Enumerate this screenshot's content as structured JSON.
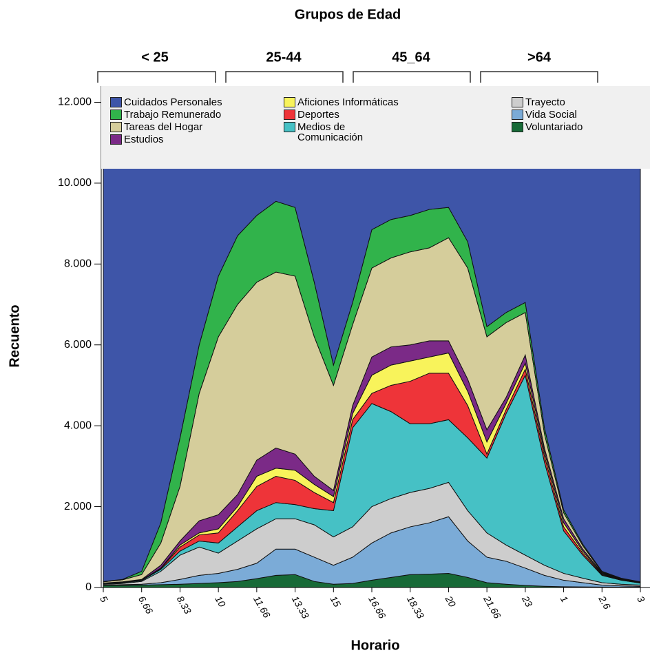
{
  "chart_data": {
    "type": "stacked-area",
    "panel_title": "Grupos de Edad",
    "panel_labels": [
      "< 25",
      "25-44",
      "45_64",
      ">64"
    ],
    "x_label": "Horario",
    "y_label": "Recuento",
    "categories": [
      "5",
      null,
      "6.66",
      null,
      "8.33",
      null,
      "10",
      null,
      "11.66",
      null,
      "13.33",
      null,
      "15",
      null,
      "16.66",
      null,
      "18.33",
      null,
      "20",
      null,
      "21.66",
      null,
      "23",
      null,
      "1",
      null,
      "2.6",
      null,
      "3"
    ],
    "ylim": [
      0,
      12400
    ],
    "yticks": [
      0,
      {
        "value": 2000,
        "label": "2.000"
      },
      {
        "value": 4000,
        "label": "4.000"
      },
      {
        "value": 6000,
        "label": "6.000"
      },
      {
        "value": 8000,
        "label": "8.000"
      },
      {
        "value": 10000,
        "label": "10.000"
      },
      {
        "value": 12000,
        "label": "12.000"
      }
    ],
    "series": [
      {
        "name": "Cuidados Personales",
        "color": "#3e55a8",
        "values": [
          10350,
          10300,
          10100,
          8900,
          6800,
          4500,
          2800,
          1800,
          1300,
          950,
          1100,
          2950,
          5000,
          3450,
          1650,
          1400,
          1300,
          1150,
          1100,
          1950,
          4050,
          3700,
          3450,
          6550,
          8580,
          9430,
          10100,
          10270,
          10360
        ]
      },
      {
        "name": "Trabajo Remunerado",
        "color": "#31b34b",
        "values": [
          10,
          10,
          80,
          500,
          1200,
          1200,
          1500,
          1700,
          1650,
          1750,
          1700,
          1350,
          500,
          550,
          950,
          950,
          900,
          950,
          750,
          650,
          250,
          250,
          250,
          150,
          70,
          40,
          20,
          10,
          5
        ]
      },
      {
        "name": "Tareas del Hogar",
        "color": "#d5cd9b",
        "values": [
          30,
          50,
          120,
          550,
          1350,
          3150,
          4400,
          4700,
          4400,
          4350,
          4400,
          3450,
          2600,
          2000,
          2200,
          2200,
          2300,
          2300,
          2550,
          2750,
          2300,
          1850,
          1050,
          350,
          150,
          80,
          20,
          10,
          10
        ]
      },
      {
        "name": "Estudios",
        "color": "#7b2a87",
        "values": [
          10,
          10,
          15,
          70,
          100,
          300,
          350,
          300,
          400,
          500,
          400,
          200,
          150,
          200,
          450,
          450,
          400,
          400,
          300,
          300,
          300,
          150,
          200,
          100,
          100,
          50,
          20,
          10,
          5
        ]
      },
      {
        "name": "Aficiones Informáticas",
        "color": "#f8f35b",
        "values": [
          0,
          5,
          5,
          10,
          50,
          50,
          100,
          100,
          250,
          200,
          250,
          200,
          150,
          150,
          450,
          500,
          500,
          400,
          500,
          350,
          300,
          150,
          150,
          100,
          100,
          50,
          20,
          10,
          5
        ]
      },
      {
        "name": "Deportes",
        "color": "#ee3439",
        "values": [
          0,
          5,
          10,
          20,
          100,
          150,
          250,
          400,
          600,
          650,
          600,
          400,
          200,
          200,
          250,
          650,
          1050,
          1250,
          1150,
          800,
          100,
          100,
          150,
          150,
          100,
          50,
          20,
          10,
          5
        ]
      },
      {
        "name": "Medios de Comunicación",
        "color": "#46c1c5",
        "values": [
          20,
          20,
          20,
          50,
          100,
          150,
          250,
          350,
          450,
          400,
          350,
          400,
          650,
          2450,
          2550,
          2150,
          1700,
          1600,
          1550,
          1800,
          1850,
          3250,
          4450,
          2550,
          1050,
          570,
          180,
          100,
          50
        ]
      },
      {
        "name": "Trayecto",
        "color": "#cdcdcd",
        "values": [
          20,
          30,
          70,
          280,
          600,
          700,
          500,
          700,
          850,
          750,
          750,
          800,
          700,
          750,
          900,
          850,
          850,
          850,
          850,
          750,
          600,
          400,
          320,
          250,
          170,
          110,
          60,
          40,
          30
        ]
      },
      {
        "name": "Vida Social",
        "color": "#7babd7",
        "values": [
          10,
          20,
          20,
          50,
          120,
          200,
          230,
          300,
          380,
          650,
          630,
          600,
          470,
          650,
          920,
          1100,
          1180,
          1270,
          1400,
          900,
          630,
          570,
          430,
          270,
          160,
          105,
          50,
          30,
          20
        ]
      },
      {
        "name": "Voluntariado",
        "color": "#176a37",
        "values": [
          50,
          50,
          60,
          70,
          80,
          100,
          120,
          150,
          220,
          300,
          320,
          150,
          80,
          100,
          180,
          250,
          320,
          330,
          350,
          250,
          120,
          80,
          50,
          30,
          20,
          15,
          10,
          10,
          10
        ]
      }
    ]
  }
}
